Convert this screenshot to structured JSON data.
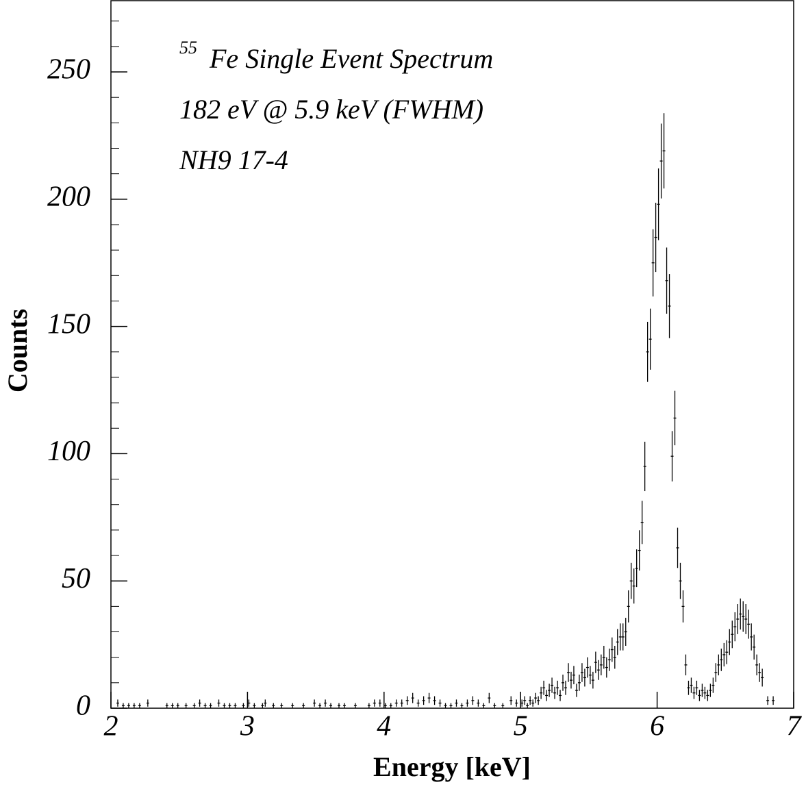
{
  "chart_data": {
    "type": "errorbar",
    "annotations": [
      {
        "sup": "55",
        "text": "Fe Single Event Spectrum"
      },
      {
        "text": "182 eV @ 5.9 keV (FWHM)"
      },
      {
        "text": "NH9 17-4"
      }
    ],
    "xlabel": "Energy [keV]",
    "ylabel": "Counts",
    "xlim": [
      2,
      7
    ],
    "xticks": [
      2,
      3,
      4,
      5,
      6,
      7
    ],
    "ylim": [
      0,
      278
    ],
    "yticks": [
      0,
      50,
      100,
      150,
      200,
      250
    ],
    "yminorticks": [
      0,
      10,
      20,
      30,
      40,
      50,
      60,
      70,
      80,
      90,
      100,
      110,
      120,
      130,
      140,
      150,
      160,
      170,
      180,
      190,
      200,
      210,
      220,
      230,
      240,
      250,
      260,
      270
    ],
    "color": "#000000",
    "x": [
      2.05,
      2.09,
      2.13,
      2.17,
      2.21,
      2.27,
      2.41,
      2.45,
      2.49,
      2.55,
      2.61,
      2.65,
      2.69,
      2.73,
      2.79,
      2.83,
      2.87,
      2.91,
      2.97,
      3.01,
      3.05,
      3.11,
      3.13,
      3.19,
      3.25,
      3.33,
      3.41,
      3.49,
      3.53,
      3.57,
      3.61,
      3.67,
      3.71,
      3.79,
      3.89,
      3.93,
      3.97,
      4.01,
      4.05,
      4.09,
      4.13,
      4.17,
      4.21,
      4.25,
      4.29,
      4.33,
      4.37,
      4.41,
      4.45,
      4.49,
      4.53,
      4.57,
      4.61,
      4.65,
      4.69,
      4.73,
      4.77,
      4.81,
      4.87,
      4.93,
      4.97,
      5.01,
      5.03,
      5.05,
      5.07,
      5.09,
      5.11,
      5.13,
      5.15,
      5.17,
      5.19,
      5.21,
      5.23,
      5.25,
      5.27,
      5.29,
      5.31,
      5.33,
      5.35,
      5.37,
      5.39,
      5.41,
      5.43,
      5.45,
      5.47,
      5.49,
      5.51,
      5.53,
      5.55,
      5.57,
      5.59,
      5.61,
      5.63,
      5.65,
      5.67,
      5.69,
      5.71,
      5.73,
      5.75,
      5.77,
      5.79,
      5.81,
      5.83,
      5.85,
      5.87,
      5.89,
      5.91,
      5.93,
      5.95,
      5.97,
      5.99,
      6.01,
      6.03,
      6.05,
      6.07,
      6.09,
      6.11,
      6.13,
      6.15,
      6.17,
      6.19,
      6.21,
      6.23,
      6.25,
      6.27,
      6.29,
      6.31,
      6.33,
      6.35,
      6.37,
      6.39,
      6.41,
      6.43,
      6.45,
      6.47,
      6.49,
      6.51,
      6.53,
      6.55,
      6.57,
      6.59,
      6.61,
      6.63,
      6.65,
      6.67,
      6.69,
      6.71,
      6.73,
      6.75,
      6.77,
      6.81,
      6.85
    ],
    "values": [
      2,
      1,
      1,
      1,
      1,
      2,
      1,
      1,
      1,
      1,
      1,
      2,
      1,
      1,
      2,
      1,
      1,
      1,
      1,
      2,
      1,
      1,
      2,
      1,
      1,
      1,
      1,
      2,
      1,
      2,
      1,
      1,
      1,
      1,
      1,
      2,
      2,
      1,
      1,
      2,
      2,
      3,
      4,
      2,
      3,
      4,
      3,
      2,
      1,
      1,
      2,
      1,
      2,
      3,
      2,
      1,
      4,
      1,
      1,
      3,
      2,
      2,
      3,
      1,
      3,
      2,
      4,
      3,
      6,
      8,
      5,
      7,
      9,
      6,
      8,
      5,
      10,
      8,
      14,
      11,
      13,
      7,
      10,
      14,
      12,
      16,
      13,
      11,
      18,
      15,
      17,
      20,
      16,
      19,
      23,
      20,
      26,
      28,
      28,
      30,
      40,
      50,
      48,
      55,
      62,
      73,
      95,
      140,
      145,
      175,
      185,
      198,
      215,
      219,
      168,
      158,
      99,
      114,
      63,
      50,
      40,
      17,
      8,
      9,
      6,
      8,
      5,
      7,
      6,
      5,
      7,
      9,
      14,
      17,
      19,
      21,
      22,
      26,
      29,
      32,
      35,
      37,
      36,
      35,
      33,
      28,
      24,
      17,
      14,
      12,
      3,
      3
    ],
    "errors": [
      1.4,
      1,
      1,
      1,
      1,
      1.4,
      1,
      1,
      1,
      1,
      1,
      1.4,
      1,
      1,
      1.4,
      1,
      1,
      1,
      1,
      1.4,
      1,
      1,
      1.4,
      1,
      1,
      1,
      1,
      1.4,
      1,
      1.4,
      1,
      1,
      1,
      1,
      1,
      1.4,
      1.4,
      1,
      1,
      1.4,
      1.4,
      1.7,
      2,
      1.4,
      1.7,
      2,
      1.7,
      1.4,
      1,
      1,
      1.4,
      1,
      1.4,
      1.7,
      1.4,
      1,
      2,
      1,
      1,
      1.7,
      1.4,
      1.4,
      1.7,
      1,
      1.7,
      1.4,
      2,
      1.7,
      2.4,
      2.8,
      2.2,
      2.6,
      3,
      2.4,
      2.8,
      2.2,
      3.2,
      2.8,
      3.7,
      3.3,
      3.6,
      2.6,
      3.2,
      3.7,
      3.5,
      4,
      3.6,
      3.3,
      4.2,
      3.9,
      4.1,
      4.5,
      4,
      4.4,
      4.8,
      4.5,
      5.1,
      5.3,
      5.3,
      5.5,
      6.3,
      7.1,
      6.9,
      7.4,
      7.9,
      8.5,
      9.7,
      11.8,
      12,
      13.2,
      13.6,
      14.1,
      14.7,
      14.8,
      13,
      12.6,
      9.9,
      10.7,
      7.9,
      7.1,
      6.3,
      4.1,
      2.8,
      3,
      2.4,
      2.8,
      2.2,
      2.6,
      2.4,
      2.2,
      2.6,
      3,
      3.7,
      4.1,
      4.4,
      4.6,
      4.7,
      5.1,
      5.4,
      5.7,
      5.9,
      6.1,
      6,
      5.9,
      5.7,
      5.3,
      4.9,
      4.1,
      3.7,
      3.5,
      1.7,
      1.7
    ]
  }
}
